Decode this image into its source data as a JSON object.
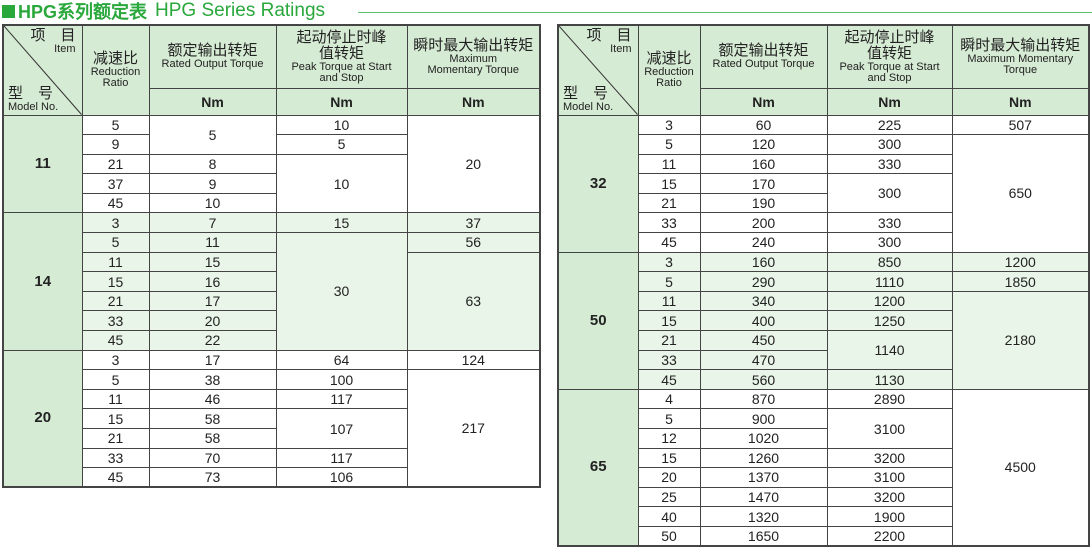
{
  "title": {
    "cn": "HPG系列额定表",
    "en": "HPG Series Ratings"
  },
  "header": {
    "item_cn": "项　目",
    "item_en": "Item",
    "model_cn": "型　号",
    "model_en": "Model No.",
    "ratio_cn": "减速比",
    "ratio_en": "Reduction Ratio",
    "rated_cn": "额定输出转矩",
    "rated_en": "Rated Output Torque",
    "peak_cn": "起动停止时峰值转矩",
    "peak_en": "Peak Torque at Start and Stop",
    "max_cn": "瞬时最大输出转矩",
    "max_en": "Maximum Momentary Torque",
    "unit": "Nm"
  },
  "colors": {
    "accent": "#2aa83c",
    "header_bg": "#d6ebd4",
    "alt_row_bg": "#e9f5e8"
  },
  "tables": [
    {
      "groups": [
        {
          "model": "11",
          "ratios": [
            "5",
            "9",
            "21",
            "37",
            "45"
          ],
          "rated": [
            {
              "v": "5",
              "span": 2
            },
            {
              "v": "8"
            },
            {
              "v": "9"
            },
            {
              "v": "10"
            }
          ],
          "peak": [
            {
              "v": "10"
            },
            {
              "v": "5"
            },
            {
              "v": "10",
              "span": 3
            }
          ],
          "max": [
            {
              "v": "20",
              "span": 5
            }
          ]
        },
        {
          "model": "14",
          "ratios": [
            "3",
            "5",
            "11",
            "15",
            "21",
            "33",
            "45"
          ],
          "rated": [
            {
              "v": "7"
            },
            {
              "v": "11"
            },
            {
              "v": "15"
            },
            {
              "v": "16"
            },
            {
              "v": "17"
            },
            {
              "v": "20"
            },
            {
              "v": "22"
            }
          ],
          "peak": [
            {
              "v": "15"
            },
            {
              "v": "30",
              "span": 6
            }
          ],
          "max": [
            {
              "v": "37"
            },
            {
              "v": "56"
            },
            {
              "v": "63",
              "span": 5
            }
          ]
        },
        {
          "model": "20",
          "ratios": [
            "3",
            "5",
            "11",
            "15",
            "21",
            "33",
            "45"
          ],
          "rated": [
            {
              "v": "17"
            },
            {
              "v": "38"
            },
            {
              "v": "46"
            },
            {
              "v": "58"
            },
            {
              "v": "58"
            },
            {
              "v": "70"
            },
            {
              "v": "73"
            }
          ],
          "peak": [
            {
              "v": "64"
            },
            {
              "v": "100"
            },
            {
              "v": "117"
            },
            {
              "v": "107",
              "span": 2
            },
            {
              "v": "117"
            },
            {
              "v": "106"
            }
          ],
          "max": [
            {
              "v": "124"
            },
            {
              "v": "217",
              "span": 6
            }
          ]
        }
      ]
    },
    {
      "groups": [
        {
          "model": "32",
          "ratios": [
            "3",
            "5",
            "11",
            "15",
            "21",
            "33",
            "45"
          ],
          "rated": [
            {
              "v": "60"
            },
            {
              "v": "120"
            },
            {
              "v": "160"
            },
            {
              "v": "170"
            },
            {
              "v": "190"
            },
            {
              "v": "200"
            },
            {
              "v": "240"
            }
          ],
          "peak": [
            {
              "v": "225"
            },
            {
              "v": "300"
            },
            {
              "v": "330"
            },
            {
              "v": "300",
              "span": 2
            },
            {
              "v": "330"
            },
            {
              "v": "300"
            }
          ],
          "max": [
            {
              "v": "507"
            },
            {
              "v": "650",
              "span": 6
            }
          ]
        },
        {
          "model": "50",
          "ratios": [
            "3",
            "5",
            "11",
            "15",
            "21",
            "33",
            "45"
          ],
          "rated": [
            {
              "v": "160"
            },
            {
              "v": "290"
            },
            {
              "v": "340"
            },
            {
              "v": "400"
            },
            {
              "v": "450"
            },
            {
              "v": "470"
            },
            {
              "v": "560"
            }
          ],
          "peak": [
            {
              "v": "850"
            },
            {
              "v": "1110"
            },
            {
              "v": "1200"
            },
            {
              "v": "1250"
            },
            {
              "v": "1140",
              "span": 2
            },
            {
              "v": "1130"
            }
          ],
          "max": [
            {
              "v": "1200"
            },
            {
              "v": "1850"
            },
            {
              "v": "2180",
              "span": 5
            }
          ]
        },
        {
          "model": "65",
          "ratios": [
            "4",
            "5",
            "12",
            "15",
            "20",
            "25",
            "40",
            "50"
          ],
          "rated": [
            {
              "v": "870"
            },
            {
              "v": "900"
            },
            {
              "v": "1020"
            },
            {
              "v": "1260"
            },
            {
              "v": "1370"
            },
            {
              "v": "1470"
            },
            {
              "v": "1320"
            },
            {
              "v": "1650"
            }
          ],
          "peak": [
            {
              "v": "2890"
            },
            {
              "v": "3100",
              "span": 2
            },
            {
              "v": "3200"
            },
            {
              "v": "3100"
            },
            {
              "v": "3200"
            },
            {
              "v": "1900"
            },
            {
              "v": "2200"
            }
          ],
          "max": [
            {
              "v": "4500",
              "span": 8
            }
          ]
        }
      ]
    }
  ]
}
